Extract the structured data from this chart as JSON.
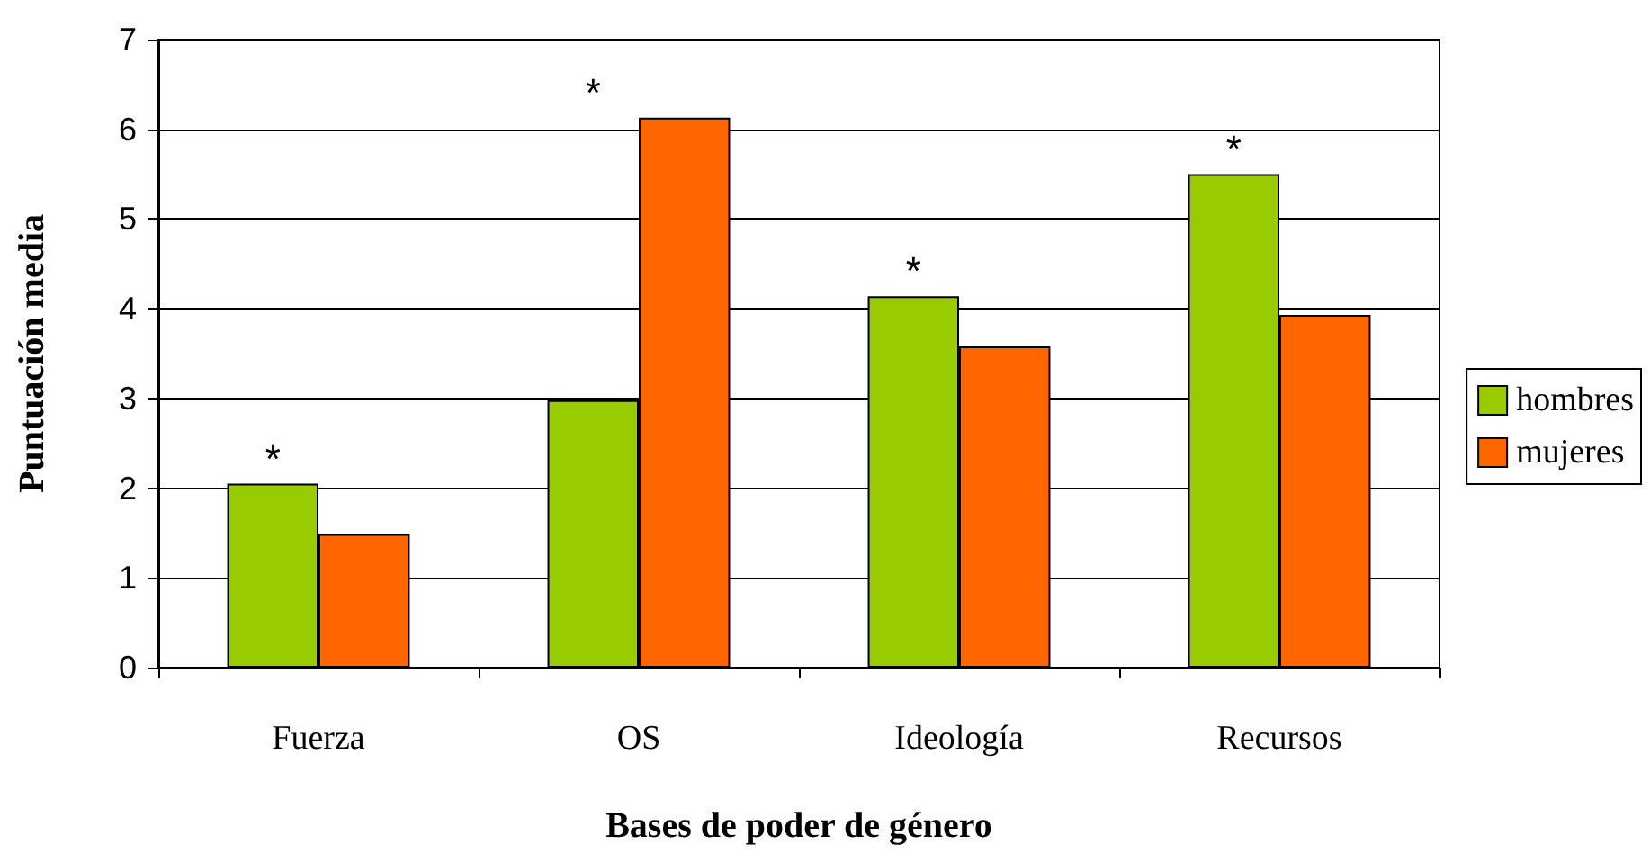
{
  "chart_data": {
    "type": "bar",
    "xlabel": "Bases de poder de género",
    "ylabel": "Puntuación media",
    "categories": [
      "Fuerza",
      "OS",
      "Ideología",
      "Recursos"
    ],
    "series": [
      {
        "name": "hombres",
        "color": "#99cc00",
        "values": [
          2.05,
          2.98,
          4.14,
          5.5
        ]
      },
      {
        "name": "mujeres",
        "color": "#ff6600",
        "values": [
          1.49,
          6.13,
          3.58,
          3.93
        ]
      }
    ],
    "ylim": [
      0,
      7
    ],
    "yticks": [
      0,
      1,
      2,
      3,
      4,
      5,
      6,
      7
    ],
    "grid": "y",
    "legend": "right",
    "annotations": [
      "*",
      "*",
      "*",
      "*"
    ]
  }
}
